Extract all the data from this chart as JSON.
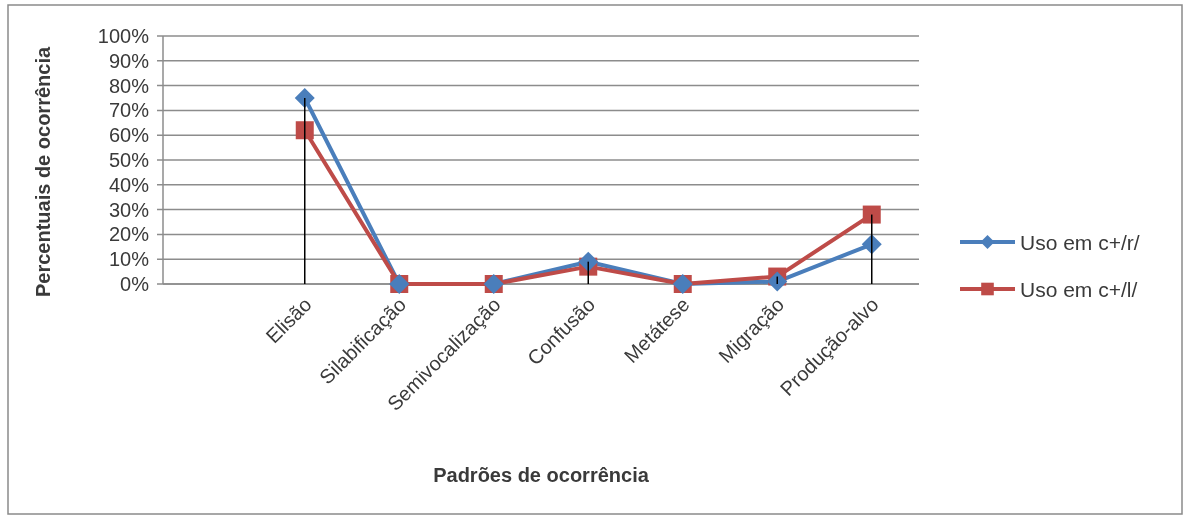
{
  "chart_data": {
    "type": "line",
    "xlabel": "Padrões de ocorrência",
    "ylabel": "Percentuais de ocorrência",
    "categories": [
      null,
      "Elisão",
      "Silabificação",
      "Semivocalização",
      "Confusão",
      "Metátese",
      "Migração",
      "Produção-alvo"
    ],
    "series": [
      {
        "type": "bar",
        "color": "#000000",
        "values": [
          null,
          75,
          null,
          null,
          9,
          null,
          3,
          28
        ]
      },
      {
        "name": "Uso em c+/r/",
        "color": "#4a7ebb",
        "marker": "diamond",
        "values": [
          null,
          75,
          0,
          0,
          9,
          0,
          1,
          16
        ]
      },
      {
        "name": "Uso em c+/l/",
        "color": "#be4b48",
        "marker": "square",
        "values": [
          null,
          62,
          0,
          0,
          7,
          0,
          3,
          28
        ]
      }
    ],
    "ylim": [
      0,
      100
    ],
    "yticks": [
      {
        "value": 0,
        "label": "0%"
      },
      {
        "value": 10,
        "label": "10%"
      },
      {
        "value": 20,
        "label": "20%"
      },
      {
        "value": 30,
        "label": "30%"
      },
      {
        "value": 40,
        "label": "40%"
      },
      {
        "value": 50,
        "label": "50%"
      },
      {
        "value": 60,
        "label": "60%"
      },
      {
        "value": 70,
        "label": "70%"
      },
      {
        "value": 80,
        "label": "80%"
      },
      {
        "value": 90,
        "label": "90%"
      },
      {
        "value": 100,
        "label": "100%"
      }
    ],
    "grid": "y",
    "legend": "right",
    "line_style": "solid"
  }
}
